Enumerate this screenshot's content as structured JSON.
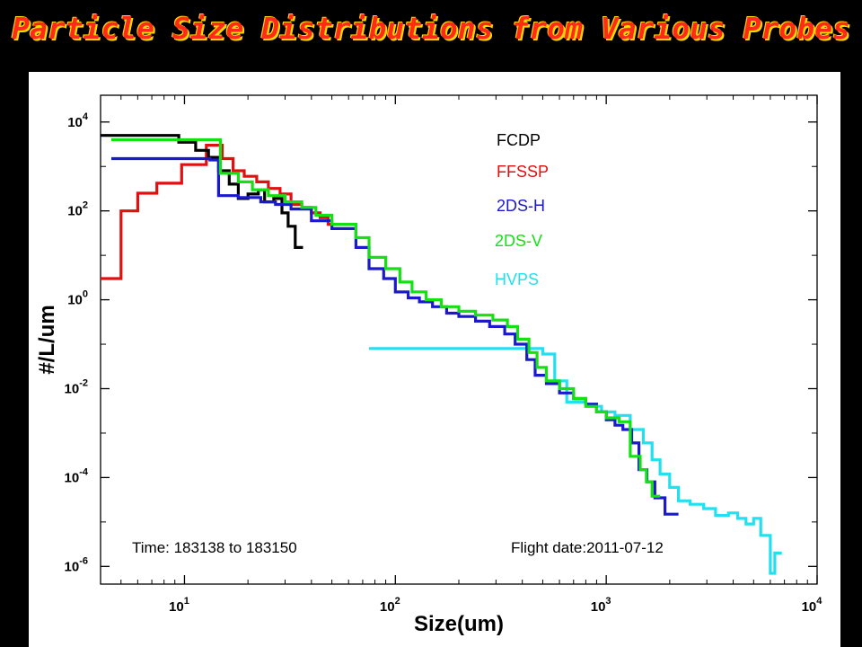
{
  "slide": {
    "title": "Particle Size Distributions from Various Probes"
  },
  "chart_data": {
    "type": "line",
    "title": "",
    "xlabel": "Size(um)",
    "ylabel": "#/L/um",
    "x_scale": "log",
    "y_scale": "log",
    "xlim": [
      4,
      10000
    ],
    "ylim": [
      4e-07,
      40000
    ],
    "x_ticks": [
      {
        "value": 10,
        "label": "10",
        "exp": "1"
      },
      {
        "value": 100,
        "label": "10",
        "exp": "2"
      },
      {
        "value": 1000,
        "label": "10",
        "exp": "3"
      },
      {
        "value": 10000,
        "label": "10",
        "exp": "4"
      }
    ],
    "y_ticks": [
      {
        "value": 1e-06,
        "label": "10",
        "exp": "-6"
      },
      {
        "value": 0.0001,
        "label": "10",
        "exp": "-4"
      },
      {
        "value": 0.01,
        "label": "10",
        "exp": "-2"
      },
      {
        "value": 1,
        "label": "10",
        "exp": "0"
      },
      {
        "value": 100,
        "label": "10",
        "exp": "2"
      },
      {
        "value": 10000,
        "label": "10",
        "exp": "4"
      }
    ],
    "grid": false,
    "legend_position": "top-right",
    "annotations": {
      "time": "Time: 183138 to 183150",
      "flight_date": "Flight date:2011-07-12"
    },
    "series": [
      {
        "name": "FCDP",
        "color": "#000000",
        "points": [
          [
            3.5,
            5000
          ],
          [
            9.4,
            5000
          ],
          [
            9.4,
            3500
          ],
          [
            11.3,
            3500
          ],
          [
            11.3,
            2300
          ],
          [
            13,
            2300
          ],
          [
            13,
            1600
          ],
          [
            14.5,
            1600
          ],
          [
            14.5,
            800
          ],
          [
            16.3,
            800
          ],
          [
            16.3,
            400
          ],
          [
            18,
            400
          ],
          [
            18,
            190
          ],
          [
            20,
            190
          ],
          [
            20,
            240
          ],
          [
            22.4,
            240
          ],
          [
            22.4,
            300
          ],
          [
            24,
            300
          ],
          [
            24,
            160
          ],
          [
            26.5,
            160
          ],
          [
            26.5,
            190
          ],
          [
            29,
            190
          ],
          [
            29,
            90
          ],
          [
            31,
            90
          ],
          [
            31,
            45
          ],
          [
            33.5,
            45
          ],
          [
            33.5,
            15
          ],
          [
            36.5,
            15
          ]
        ]
      },
      {
        "name": "FFSSP",
        "color": "#e01010",
        "points": [
          [
            3.5,
            3
          ],
          [
            5,
            3
          ],
          [
            5,
            100
          ],
          [
            6,
            100
          ],
          [
            6,
            250
          ],
          [
            7.4,
            250
          ],
          [
            7.4,
            420
          ],
          [
            8.4,
            420
          ],
          [
            8.4,
            420
          ],
          [
            9.7,
            420
          ],
          [
            9.7,
            1100
          ],
          [
            12.7,
            1100
          ],
          [
            12.7,
            3000
          ],
          [
            15.1,
            3000
          ],
          [
            15.1,
            1500
          ],
          [
            17,
            1500
          ],
          [
            17,
            800
          ],
          [
            19.2,
            800
          ],
          [
            19.2,
            600
          ],
          [
            22,
            600
          ],
          [
            22,
            450
          ],
          [
            25,
            450
          ],
          [
            25,
            320
          ],
          [
            28.4,
            320
          ],
          [
            28.4,
            240
          ],
          [
            32,
            240
          ],
          [
            32,
            140
          ],
          [
            36,
            140
          ],
          [
            36,
            120
          ],
          [
            40,
            120
          ],
          [
            40,
            90
          ],
          [
            44,
            90
          ],
          [
            44,
            70
          ],
          [
            48,
            70
          ],
          [
            48,
            50
          ],
          [
            52,
            50
          ]
        ]
      },
      {
        "name": "2DS-H",
        "color": "#1a1acc",
        "points": [
          [
            4.5,
            1500
          ],
          [
            13.2,
            1500
          ],
          [
            13.2,
            1400
          ],
          [
            14.5,
            1400
          ],
          [
            14.5,
            220
          ],
          [
            18,
            220
          ],
          [
            18,
            200
          ],
          [
            23,
            200
          ],
          [
            23,
            160
          ],
          [
            27,
            160
          ],
          [
            27,
            140
          ],
          [
            32,
            140
          ],
          [
            32,
            110
          ],
          [
            40,
            110
          ],
          [
            40,
            60
          ],
          [
            50,
            60
          ],
          [
            50,
            40
          ],
          [
            65,
            40
          ],
          [
            65,
            15
          ],
          [
            75,
            15
          ],
          [
            75,
            5
          ],
          [
            88,
            5
          ],
          [
            88,
            3
          ],
          [
            100,
            3
          ],
          [
            100,
            1.5
          ],
          [
            115,
            1.5
          ],
          [
            115,
            1.1
          ],
          [
            130,
            1.1
          ],
          [
            130,
            0.9
          ],
          [
            150,
            0.9
          ],
          [
            150,
            0.7
          ],
          [
            175,
            0.7
          ],
          [
            175,
            0.5
          ],
          [
            200,
            0.5
          ],
          [
            200,
            0.42
          ],
          [
            240,
            0.42
          ],
          [
            240,
            0.33
          ],
          [
            280,
            0.33
          ],
          [
            280,
            0.25
          ],
          [
            330,
            0.25
          ],
          [
            330,
            0.17
          ],
          [
            370,
            0.17
          ],
          [
            370,
            0.1
          ],
          [
            420,
            0.1
          ],
          [
            420,
            0.045
          ],
          [
            460,
            0.045
          ],
          [
            460,
            0.02
          ],
          [
            520,
            0.02
          ],
          [
            520,
            0.013
          ],
          [
            600,
            0.013
          ],
          [
            600,
            0.008
          ],
          [
            700,
            0.008
          ],
          [
            700,
            0.006
          ],
          [
            800,
            0.006
          ],
          [
            800,
            0.0045
          ],
          [
            900,
            0.0045
          ],
          [
            900,
            0.003
          ],
          [
            1000,
            0.003
          ],
          [
            1000,
            0.002
          ],
          [
            1100,
            0.002
          ],
          [
            1100,
            0.0015
          ],
          [
            1200,
            0.0015
          ],
          [
            1200,
            0.0012
          ],
          [
            1320,
            0.0012
          ],
          [
            1320,
            0.0006
          ],
          [
            1430,
            0.0006
          ],
          [
            1430,
            0.00015
          ],
          [
            1560,
            0.00015
          ],
          [
            1560,
            8e-05
          ],
          [
            1700,
            8e-05
          ],
          [
            1700,
            3.5e-05
          ],
          [
            1900,
            3.5e-05
          ],
          [
            1900,
            1.5e-05
          ],
          [
            2200,
            1.5e-05
          ]
        ]
      },
      {
        "name": "2DS-V",
        "color": "#14e014",
        "points": [
          [
            4.5,
            4000
          ],
          [
            14.8,
            4000
          ],
          [
            14.8,
            700
          ],
          [
            18,
            700
          ],
          [
            18,
            450
          ],
          [
            21,
            450
          ],
          [
            21,
            300
          ],
          [
            25,
            300
          ],
          [
            25,
            220
          ],
          [
            30,
            220
          ],
          [
            30,
            160
          ],
          [
            36,
            160
          ],
          [
            36,
            120
          ],
          [
            42,
            120
          ],
          [
            42,
            80
          ],
          [
            50,
            80
          ],
          [
            50,
            50
          ],
          [
            65,
            50
          ],
          [
            65,
            25
          ],
          [
            75,
            25
          ],
          [
            75,
            9
          ],
          [
            90,
            9
          ],
          [
            90,
            5
          ],
          [
            105,
            5
          ],
          [
            105,
            2.5
          ],
          [
            120,
            2.5
          ],
          [
            120,
            1.5
          ],
          [
            140,
            1.5
          ],
          [
            140,
            1.0
          ],
          [
            165,
            1.0
          ],
          [
            165,
            0.7
          ],
          [
            200,
            0.7
          ],
          [
            200,
            0.55
          ],
          [
            240,
            0.55
          ],
          [
            240,
            0.45
          ],
          [
            290,
            0.45
          ],
          [
            290,
            0.35
          ],
          [
            340,
            0.35
          ],
          [
            340,
            0.25
          ],
          [
            380,
            0.25
          ],
          [
            380,
            0.13
          ],
          [
            430,
            0.13
          ],
          [
            430,
            0.065
          ],
          [
            470,
            0.065
          ],
          [
            470,
            0.03
          ],
          [
            520,
            0.03
          ],
          [
            520,
            0.015
          ],
          [
            600,
            0.015
          ],
          [
            600,
            0.01
          ],
          [
            700,
            0.01
          ],
          [
            700,
            0.006
          ],
          [
            800,
            0.006
          ],
          [
            800,
            0.004
          ],
          [
            900,
            0.004
          ],
          [
            900,
            0.003
          ],
          [
            1000,
            0.003
          ],
          [
            1000,
            0.0022
          ],
          [
            1150,
            0.0022
          ],
          [
            1150,
            0.0018
          ],
          [
            1300,
            0.0018
          ],
          [
            1300,
            0.0003
          ],
          [
            1450,
            0.0003
          ],
          [
            1450,
            0.00015
          ],
          [
            1550,
            0.00015
          ],
          [
            1550,
            8e-05
          ],
          [
            1650,
            8e-05
          ],
          [
            1650,
            3.8e-05
          ],
          [
            1800,
            3.8e-05
          ]
        ]
      },
      {
        "name": "HVPS",
        "color": "#22e0f0",
        "points": [
          [
            75,
            0.08
          ],
          [
            500,
            0.08
          ],
          [
            500,
            0.06
          ],
          [
            570,
            0.06
          ],
          [
            570,
            0.015
          ],
          [
            650,
            0.015
          ],
          [
            650,
            0.005
          ],
          [
            800,
            0.005
          ],
          [
            800,
            0.004
          ],
          [
            950,
            0.004
          ],
          [
            950,
            0.003
          ],
          [
            1100,
            0.003
          ],
          [
            1100,
            0.0025
          ],
          [
            1300,
            0.0025
          ],
          [
            1300,
            0.0012
          ],
          [
            1500,
            0.0012
          ],
          [
            1500,
            0.0006
          ],
          [
            1650,
            0.0006
          ],
          [
            1650,
            0.00025
          ],
          [
            1800,
            0.00025
          ],
          [
            1800,
            0.00012
          ],
          [
            2000,
            0.00012
          ],
          [
            2000,
            6e-05
          ],
          [
            2200,
            6e-05
          ],
          [
            2200,
            3e-05
          ],
          [
            2500,
            3e-05
          ],
          [
            2500,
            2.5e-05
          ],
          [
            2900,
            2.5e-05
          ],
          [
            2900,
            2e-05
          ],
          [
            3300,
            2e-05
          ],
          [
            3300,
            1.4e-05
          ],
          [
            3800,
            1.4e-05
          ],
          [
            3800,
            1.6e-05
          ],
          [
            4200,
            1.6e-05
          ],
          [
            4200,
            1.2e-05
          ],
          [
            4600,
            1.2e-05
          ],
          [
            4600,
            9e-06
          ],
          [
            5000,
            9e-06
          ],
          [
            5000,
            1.2e-05
          ],
          [
            5400,
            1.2e-05
          ],
          [
            5400,
            5e-06
          ],
          [
            6000,
            5e-06
          ],
          [
            6000,
            7e-07
          ],
          [
            6300,
            7e-07
          ],
          [
            6300,
            2e-06
          ],
          [
            6800,
            2e-06
          ]
        ]
      }
    ]
  }
}
